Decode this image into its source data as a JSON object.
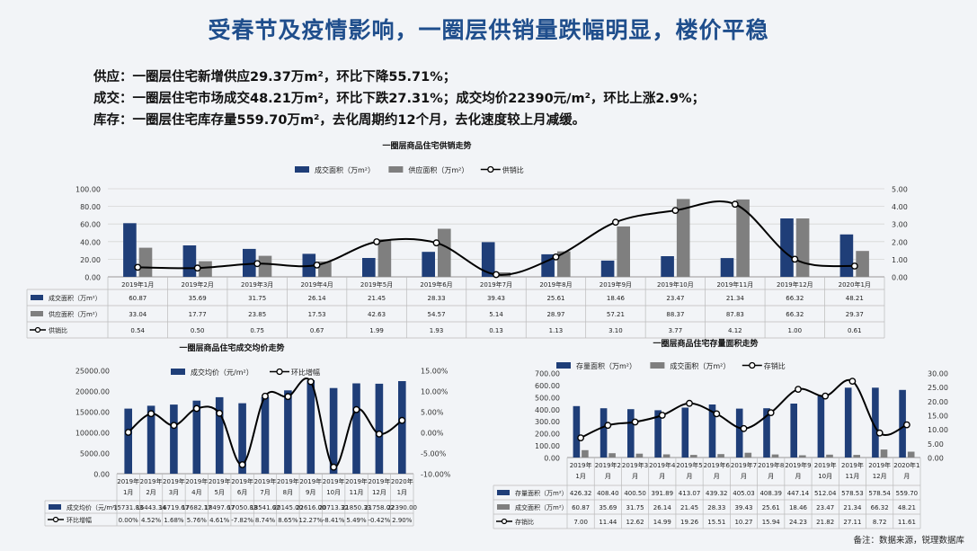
{
  "page": {
    "title": "受春节及疫情影响，一圈层供销量跌幅明显，楼价平稳",
    "bullets": [
      "供应：一圈层住宅新增供应29.37万m²，环比下降55.71%；",
      "成交：一圈层住宅市场成交48.21万m²，环比下跌27.31%；成交均价22390元/m²，环比上涨2.9%；",
      "库存：一圈层住宅库存量559.70万m²，去化周期约12个月，去化速度较上月减缓。"
    ],
    "footnote": "备注：数据来源，锐理数据库"
  },
  "colors": {
    "navy": "#1f3e78",
    "gray": "#7f7f7f",
    "line": "#000000",
    "title": "#1f4e8c"
  },
  "chart_data": [
    {
      "type": "bar",
      "title": "一圈层商品住宅供销走势",
      "categories": [
        "2019年1月",
        "2019年2月",
        "2019年3月",
        "2019年4月",
        "2019年5月",
        "2019年6月",
        "2019年7月",
        "2019年8月",
        "2019年9月",
        "2019年10月",
        "2019年11月",
        "2019年12月",
        "2020年1月"
      ],
      "series": [
        {
          "name": "成交面积（万m²）",
          "kind": "bar",
          "color": "#1f3e78",
          "axis": "left",
          "values": [
            60.87,
            35.69,
            31.75,
            26.14,
            21.45,
            28.33,
            39.43,
            25.61,
            18.46,
            23.47,
            21.34,
            66.32,
            48.21
          ],
          "labels": [
            "60.87",
            "35.69",
            "31.75",
            "26.14",
            "21.45",
            "28.33",
            "39.43",
            "25.61",
            "18.46",
            "23.47",
            "21.34",
            "66.32",
            "48.21"
          ]
        },
        {
          "name": "供应面积（万m²）",
          "kind": "bar",
          "color": "#7f7f7f",
          "axis": "left",
          "values": [
            33.04,
            17.77,
            23.85,
            17.53,
            42.63,
            54.57,
            5.14,
            28.97,
            57.21,
            88.37,
            87.83,
            66.32,
            29.37
          ],
          "labels": [
            "33.04",
            "17.77",
            "23.85",
            "17.53",
            "42.63",
            "54.57",
            "5.14",
            "28.97",
            "57.21",
            "88.37",
            "87.83",
            "66.32",
            "29.37"
          ]
        },
        {
          "name": "供销比",
          "kind": "line",
          "color": "#000000",
          "axis": "right",
          "values": [
            0.54,
            0.5,
            0.75,
            0.67,
            1.99,
            1.93,
            0.13,
            1.13,
            3.1,
            3.77,
            4.12,
            1.0,
            0.61
          ],
          "labels": [
            "0.54",
            "0.50",
            "0.75",
            "0.67",
            "1.99",
            "1.93",
            "0.13",
            "1.13",
            "3.10",
            "3.77",
            "4.12",
            "1.00",
            "0.61"
          ]
        }
      ],
      "y_left": {
        "min": 0,
        "max": 100,
        "ticks": [
          "0.00",
          "20.00",
          "40.00",
          "60.00",
          "80.00",
          "100.00"
        ]
      },
      "y_right": {
        "min": 0,
        "max": 5,
        "ticks": [
          "0.00",
          "1.00",
          "2.00",
          "3.00",
          "4.00",
          "5.00"
        ]
      },
      "grid": true,
      "legend_position": "top"
    },
    {
      "type": "bar",
      "title": "一圈层商品住宅成交均价走势",
      "categories": [
        "2019年1月",
        "2019年2月",
        "2019年3月",
        "2019年4月",
        "2019年5月",
        "2019年6月",
        "2019年7月",
        "2019年8月",
        "2019年9月",
        "2019年10月",
        "2019年11月",
        "2019年12月",
        "2020年1月"
      ],
      "category_lines": [
        [
          "2019年",
          "1月"
        ],
        [
          "2019年",
          "2月"
        ],
        [
          "2019年",
          "3月"
        ],
        [
          "2019年",
          "4月"
        ],
        [
          "2019年",
          "5月"
        ],
        [
          "2019年",
          "6月"
        ],
        [
          "2019年",
          "7月"
        ],
        [
          "2019年",
          "8月"
        ],
        [
          "2019年",
          "9月"
        ],
        [
          "2019年",
          "10月"
        ],
        [
          "2019年",
          "11月"
        ],
        [
          "2019年",
          "12月"
        ],
        [
          "2020年",
          "1月"
        ]
      ],
      "series": [
        {
          "name": "成交均价（元/m²）",
          "kind": "bar",
          "color": "#1f3e78",
          "axis": "left",
          "values": [
            15731.83,
            16443.34,
            16719.67,
            17682.17,
            18497.67,
            17050.83,
            18541.62,
            20145.0,
            22616.0,
            20713.32,
            21850.33,
            21758.02,
            22390.0
          ],
          "labels": [
            "15731.83",
            "16443.34",
            "16719.67",
            "17682.17",
            "18497.67",
            "17050.83",
            "18541.62",
            "20145.00",
            "22616.00",
            "20713.32",
            "21850.33",
            "21758.02",
            "22390.00"
          ]
        },
        {
          "name": "环比增幅",
          "kind": "line",
          "color": "#000000",
          "axis": "right",
          "values": [
            0.0,
            4.52,
            1.68,
            5.76,
            4.61,
            -7.82,
            8.74,
            8.65,
            12.27,
            -8.41,
            5.49,
            -0.42,
            2.9
          ],
          "labels": [
            "0.00%",
            "4.52%",
            "1.68%",
            "5.76%",
            "4.61%",
            "-7.82%",
            "8.74%",
            "8.65%",
            "12.27%",
            "-8.41%",
            "5.49%",
            "-0.42%",
            "2.90%"
          ]
        }
      ],
      "y_left": {
        "min": 0,
        "max": 25000,
        "ticks": [
          "0.00",
          "5000.00",
          "10000.00",
          "15000.00",
          "20000.00",
          "25000.00"
        ]
      },
      "y_right": {
        "min": -10,
        "max": 15,
        "ticks": [
          "-10.00%",
          "-5.00%",
          "0.00%",
          "5.00%",
          "10.00%",
          "15.00%"
        ]
      },
      "grid": false,
      "legend_position": "top"
    },
    {
      "type": "bar",
      "title": "一圈层商品住宅存量面积走势",
      "categories": [
        "2019年1月",
        "2019年2月",
        "2019年3月",
        "2019年4月",
        "2019年5月",
        "2019年6月",
        "2019年7月",
        "2019年8月",
        "2019年9月",
        "2019年10月",
        "2019年11月",
        "2019年12月",
        "2020年1月"
      ],
      "category_lines": [
        [
          "2019年",
          "1月"
        ],
        [
          "2019年2",
          "月"
        ],
        [
          "2019年3",
          "月"
        ],
        [
          "2019年4",
          "月"
        ],
        [
          "2019年5",
          "月"
        ],
        [
          "2019年6",
          "月"
        ],
        [
          "2019年7",
          "月"
        ],
        [
          "2019年8",
          "月"
        ],
        [
          "2019年9",
          "月"
        ],
        [
          "2019年",
          "10月"
        ],
        [
          "2019年",
          "11月"
        ],
        [
          "2019年",
          "12月"
        ],
        [
          "2020年1",
          "月"
        ]
      ],
      "series": [
        {
          "name": "存量面积（万m²）",
          "kind": "bar",
          "color": "#1f3e78",
          "axis": "left",
          "values": [
            426.32,
            408.4,
            400.5,
            391.89,
            413.07,
            439.32,
            405.03,
            408.39,
            447.14,
            512.04,
            578.53,
            578.54,
            559.7
          ],
          "labels": [
            "426.32",
            "408.40",
            "400.50",
            "391.89",
            "413.07",
            "439.32",
            "405.03",
            "408.39",
            "447.14",
            "512.04",
            "578.53",
            "578.54",
            "559.70"
          ]
        },
        {
          "name": "成交面积（万m²）",
          "kind": "bar",
          "color": "#7f7f7f",
          "axis": "left",
          "values": [
            60.87,
            35.69,
            31.75,
            26.14,
            21.45,
            28.33,
            39.43,
            25.61,
            18.46,
            23.47,
            21.34,
            66.32,
            48.21
          ],
          "labels": [
            "60.87",
            "35.69",
            "31.75",
            "26.14",
            "21.45",
            "28.33",
            "39.43",
            "25.61",
            "18.46",
            "23.47",
            "21.34",
            "66.32",
            "48.21"
          ]
        },
        {
          "name": "存销比",
          "kind": "line",
          "color": "#000000",
          "axis": "right",
          "values": [
            7.0,
            11.44,
            12.62,
            14.99,
            19.26,
            15.51,
            10.27,
            15.94,
            24.23,
            21.82,
            27.11,
            8.72,
            11.61
          ],
          "labels": [
            "7.00",
            "11.44",
            "12.62",
            "14.99",
            "19.26",
            "15.51",
            "10.27",
            "15.94",
            "24.23",
            "21.82",
            "27.11",
            "8.72",
            "11.61"
          ]
        }
      ],
      "y_left": {
        "min": 0,
        "max": 700,
        "ticks": [
          "0.00",
          "100.00",
          "200.00",
          "300.00",
          "400.00",
          "500.00",
          "600.00",
          "700.00"
        ]
      },
      "y_right": {
        "min": 0,
        "max": 30,
        "ticks": [
          "0.00",
          "5.00",
          "10.00",
          "15.00",
          "20.00",
          "25.00",
          "30.00"
        ]
      },
      "grid": false,
      "legend_position": "top"
    }
  ]
}
